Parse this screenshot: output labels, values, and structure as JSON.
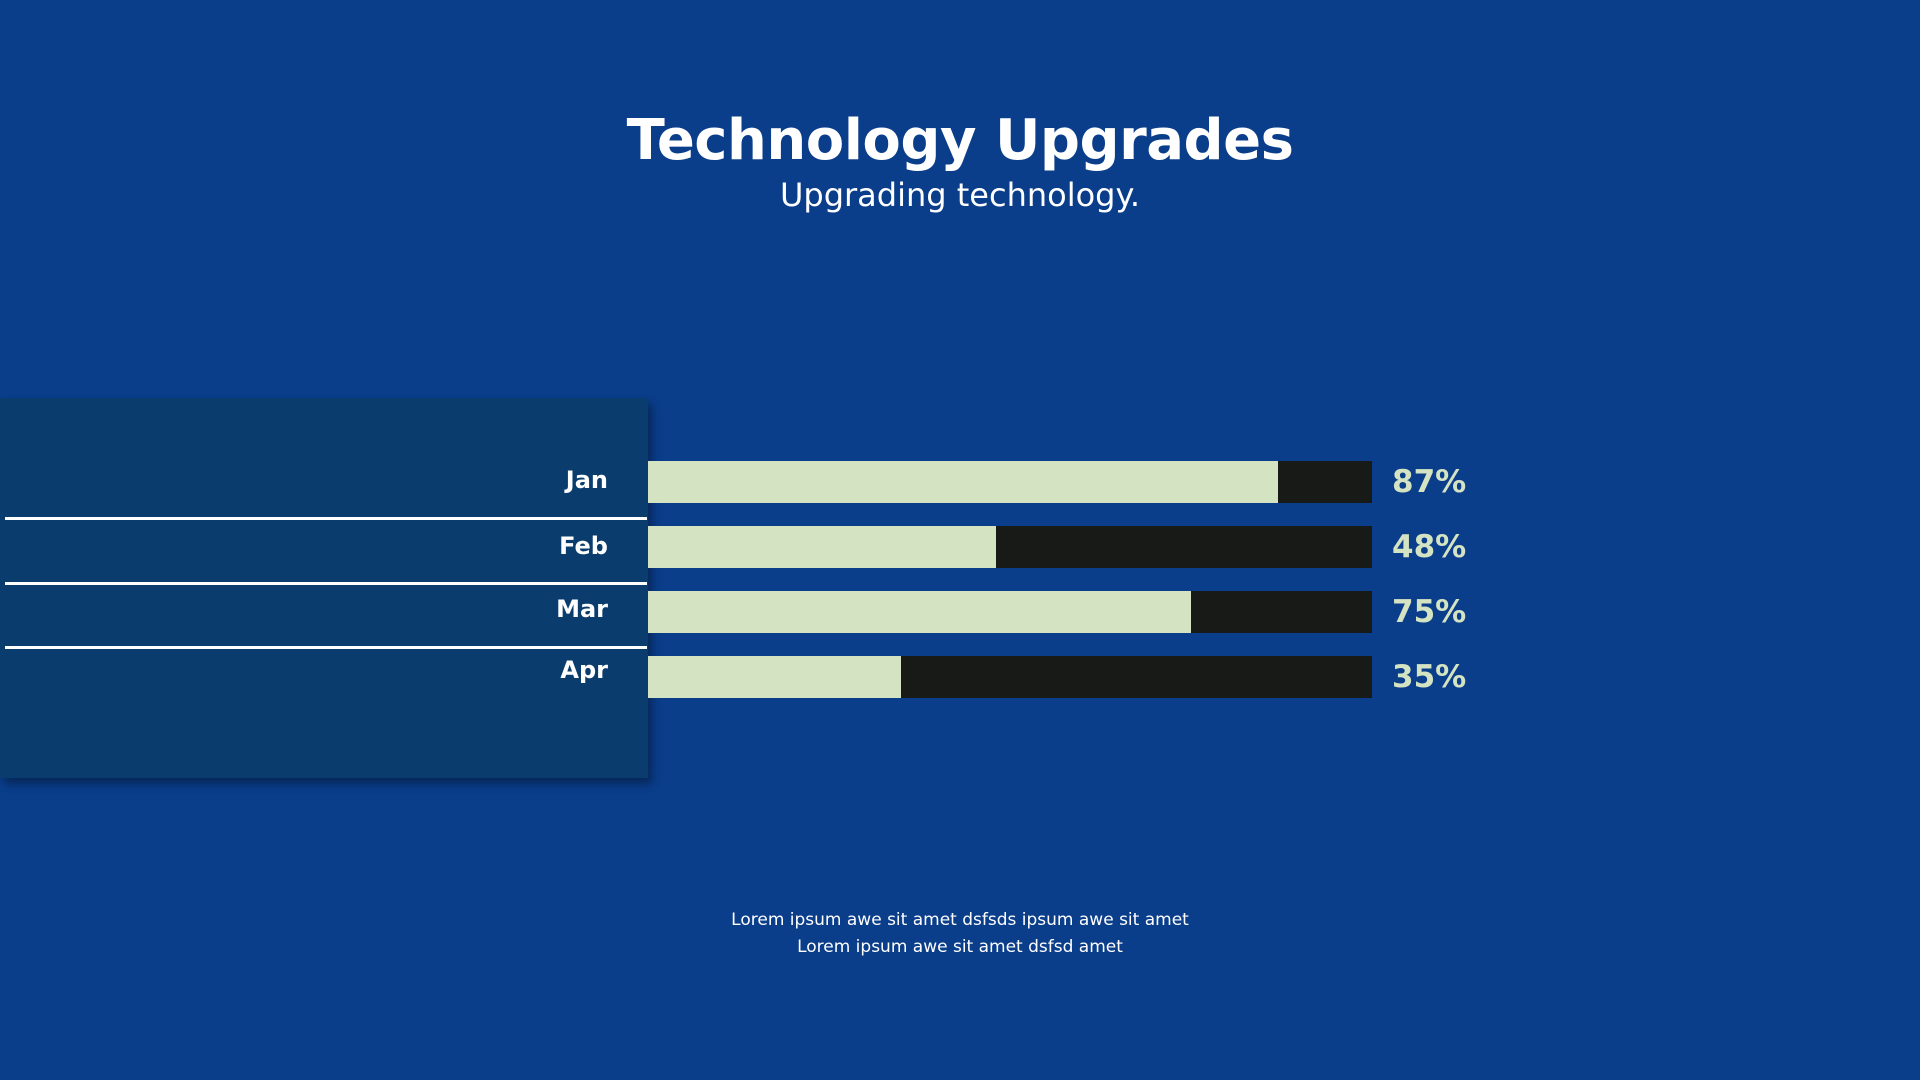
{
  "colors": {
    "background": "#0a3d8a",
    "panel": "#0a3d6e",
    "bar_fill": "#d4e4c2",
    "bar_track": "#181a18",
    "percent_text": "#d4e4c2",
    "text": "#ffffff"
  },
  "header": {
    "title": "Technology Upgrades",
    "subtitle": "Upgrading technology."
  },
  "chart_data": {
    "type": "bar",
    "orientation": "horizontal",
    "categories": [
      "Jan",
      "Feb",
      "Mar",
      "Apr"
    ],
    "values": [
      87,
      48,
      75,
      35
    ],
    "value_labels": [
      "87%",
      "48%",
      "75%",
      "35%"
    ],
    "xlim": [
      0,
      100
    ],
    "title": "Technology Upgrades",
    "subtitle": "Upgrading technology."
  },
  "footer": {
    "line1": "Lorem ipsum awe sit amet dsfsds ipsum awe sit amet",
    "line2": "Lorem ipsum awe sit amet dsfsd amet"
  }
}
